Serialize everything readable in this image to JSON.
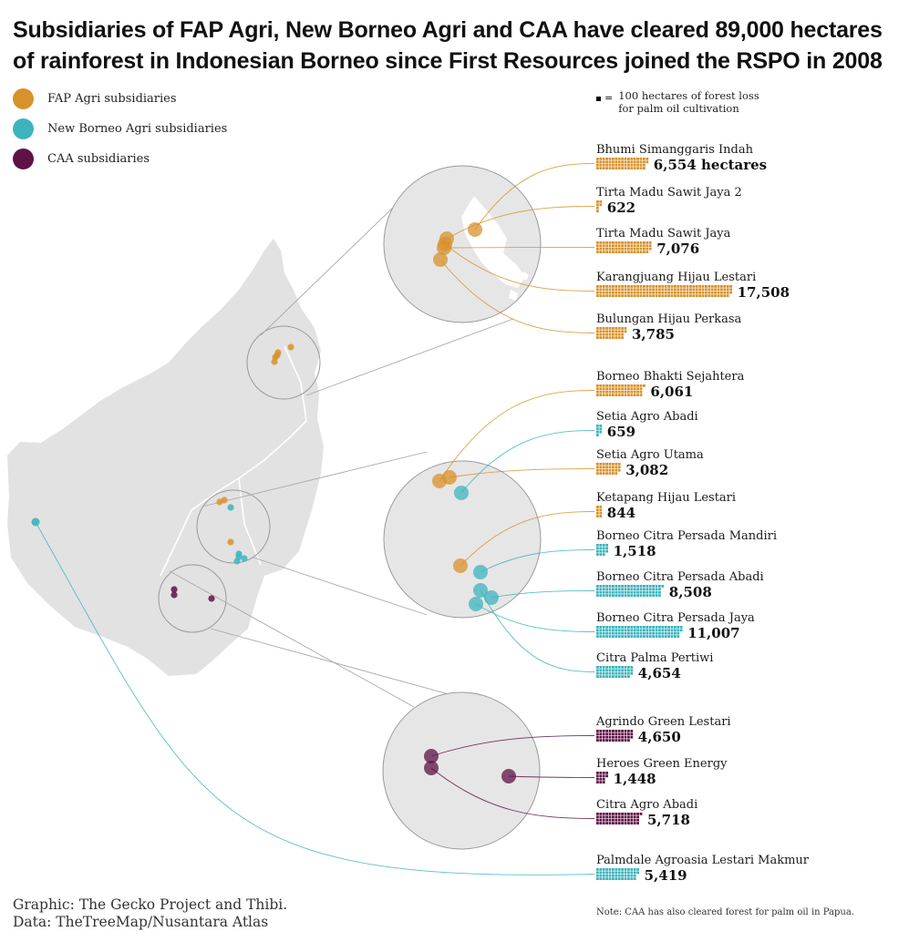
{
  "title": {
    "line1": "Subsidiaries of FAP Agri, New Borneo Agri and CAA have cleared 89,000 hectares",
    "line2": "of rainforest in Indonesian Borneo since First Resources joined the RSPO in 2008"
  },
  "colors": {
    "fap": "#D8922C",
    "nba": "#3DB4BD",
    "caa": "#5E1245",
    "map": "#E2E2E2",
    "circle": "#E6E6E6"
  },
  "legend": [
    {
      "key": "fap",
      "label": "FAP Agri subsidiaries"
    },
    {
      "key": "nba",
      "label": "New Borneo Agri subsidiaries"
    },
    {
      "key": "caa",
      "label": "CAA subsidiaries"
    }
  ],
  "unit_note": {
    "symbol": "=",
    "text_line1": "100 hectares of forest loss",
    "text_line2": "for palm oil cultivation"
  },
  "chart_data": {
    "type": "bar",
    "unit": "hectares",
    "square_unit": 100,
    "categories": [
      "Bhumi Simanggaris Indah",
      "Tirta Madu Sawit Jaya 2",
      "Tirta Madu Sawit Jaya",
      "Karangjuang Hijau Lestari",
      "Bulungan Hijau Perkasa",
      "Borneo Bhakti Sejahtera",
      "Setia Agro Abadi",
      "Setia Agro Utama",
      "Ketapang Hijau Lestari",
      "Borneo Citra Persada Mandiri",
      "Borneo Citra Persada Abadi",
      "Borneo Citra Persada Jaya",
      "Citra Palma Pertiwi",
      "Agrindo Green Lestari",
      "Heroes Green Energy",
      "Citra Agro Abadi",
      "Palmdale Agroasia Lestari Makmur"
    ],
    "values": [
      6554,
      622,
      7076,
      17508,
      3785,
      6061,
      659,
      3082,
      844,
      1518,
      8508,
      11007,
      4654,
      4650,
      1448,
      5718,
      5419
    ],
    "labels": [
      "6,554 hectares",
      "622",
      "7,076",
      "17,508",
      "3,785",
      "6,061",
      "659",
      "3,082",
      "844",
      "1,518",
      "8,508",
      "11,007",
      "4,654",
      "4,650",
      "1,448",
      "5,718",
      "5,419"
    ],
    "groups": [
      "fap",
      "fap",
      "fap",
      "fap",
      "fap",
      "fap",
      "nba",
      "fap",
      "fap",
      "nba",
      "nba",
      "nba",
      "nba",
      "caa",
      "caa",
      "caa",
      "nba"
    ]
  },
  "credit": {
    "line1": "Graphic: The Gecko Project and Thibi.",
    "line2": "Data: TheTreeMap/Nusantara Atlas"
  },
  "footnote": "Note: CAA has also cleared forest for palm oil in Papua."
}
